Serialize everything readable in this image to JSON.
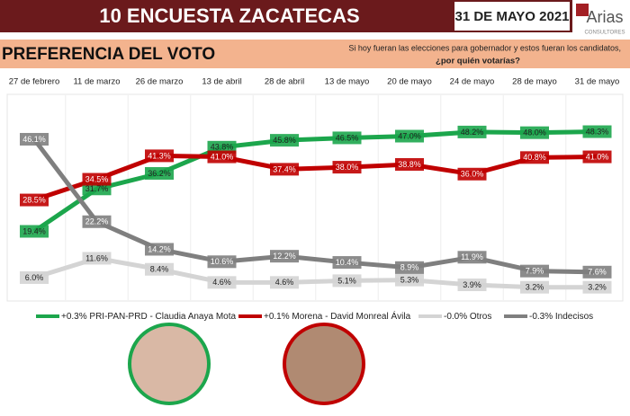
{
  "header": {
    "title": "10 ENCUESTA ZACATECAS",
    "date": "31 DE MAYO 2021",
    "logo": "Arias",
    "logo_sub": "CONSULTORES",
    "section": "PREFERENCIA DEL VOTO",
    "question_1": "Si hoy fueran las elecciones para gobernador y estos fueran los candidatos,",
    "question_2": "¿por quién votarías?"
  },
  "chart_data": {
    "type": "line",
    "categories": [
      "27 de febrero",
      "11 de marzo",
      "26 de marzo",
      "13 de abril",
      "28 de abril",
      "13 de mayo",
      "20 de mayo",
      "24 de mayo",
      "28 de mayo",
      "31 de mayo"
    ],
    "series": [
      {
        "name": "+0.3% PRI-PAN-PRD - Claudia Anaya Mota",
        "color": "#1ca64c",
        "values": [
          19.4,
          31.7,
          36.2,
          43.8,
          45.8,
          46.5,
          47.0,
          48.2,
          48.0,
          48.3
        ],
        "value_labels": [
          "19.4%",
          "31.7%",
          "36.2%",
          "43.8%",
          "45.8%",
          "46.5%",
          "47.0%",
          "48.2%",
          "48.0%",
          "48.3%"
        ]
      },
      {
        "name": "+0.1% Morena - David Monreal Ávila",
        "color": "#c00000",
        "values": [
          28.5,
          34.5,
          41.3,
          41.0,
          37.4,
          38.0,
          38.8,
          36.0,
          40.8,
          41.0
        ],
        "value_labels": [
          "28.5%",
          "34.5%",
          "41.3%",
          "41.0%",
          "37.4%",
          "38.0%",
          "38.8%",
          "36.0%",
          "40.8%",
          "41.0%"
        ]
      },
      {
        "name": "-0.0% Otros",
        "color": "#d4d4d4",
        "values": [
          6.0,
          11.6,
          8.4,
          4.6,
          4.6,
          5.1,
          5.3,
          3.9,
          3.2,
          3.2
        ],
        "value_labels": [
          "6.0%",
          "11.6%",
          "8.4%",
          "4.6%",
          "4.6%",
          "5.1%",
          "5.3%",
          "3.9%",
          "3.2%",
          "3.2%"
        ]
      },
      {
        "name": "-0.3% Indecisos",
        "color": "#7f7f7f",
        "values": [
          46.1,
          22.2,
          14.2,
          10.6,
          12.2,
          10.4,
          8.9,
          11.9,
          7.9,
          7.6
        ],
        "value_labels": [
          "46.1%",
          "22.2%",
          "14.2%",
          "10.6%",
          "12.2%",
          "10.4%",
          "8.9%",
          "11.9%",
          "7.9%",
          "7.6%"
        ]
      }
    ]
  }
}
